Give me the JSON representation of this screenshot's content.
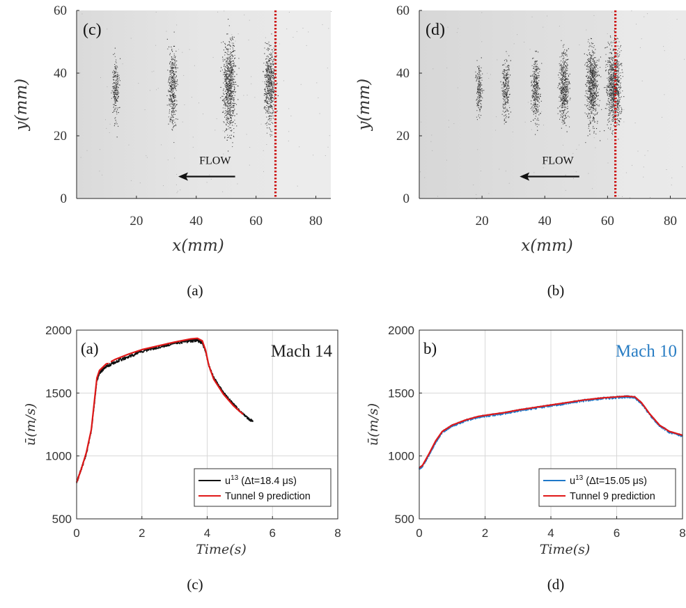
{
  "captions": {
    "top_left": "(a)",
    "top_right": "(b)",
    "bottom_left": "(c)",
    "bottom_right": "(d)"
  },
  "colors": {
    "marker_line": "#cc1111",
    "red_series": "#e01818",
    "black_series": "#111111",
    "blue_series": "#1f78c8",
    "mach10_title": "#2a7ec4",
    "frame": "#262626",
    "grid": "#d8d8d8"
  },
  "chart_data": [
    {
      "type": "scatter",
      "panel_label": "(c)",
      "xlabel": "x(mm)",
      "ylabel": "y(mm)",
      "xlim": [
        0,
        85
      ],
      "ylim": [
        0,
        60
      ],
      "xticks": [
        20,
        40,
        60,
        80
      ],
      "yticks": [
        0,
        20,
        40,
        60
      ],
      "grid": false,
      "background": "grayscale particle image",
      "annotation": "FLOW",
      "arrow": {
        "from_x": 53,
        "to_x": 34,
        "y": 7,
        "direction": "left"
      },
      "marker_line_x": 66.5,
      "clusters": [
        {
          "x": 13,
          "y_center": 35,
          "half_height": 9,
          "density": 0.25
        },
        {
          "x": 32,
          "y_center": 35,
          "half_height": 11,
          "density": 0.45
        },
        {
          "x": 51,
          "y_center": 36,
          "half_height": 13,
          "density": 0.85
        },
        {
          "x": 64.5,
          "y_center": 36,
          "half_height": 11,
          "density": 0.65
        }
      ]
    },
    {
      "type": "scatter",
      "panel_label": "(d)",
      "xlabel": "x(mm)",
      "ylabel": "y(mm)",
      "xlim": [
        0,
        85
      ],
      "ylim": [
        0,
        60
      ],
      "xticks": [
        20,
        40,
        60,
        80
      ],
      "yticks": [
        0,
        20,
        40,
        60
      ],
      "grid": false,
      "background": "grayscale particle image",
      "annotation": "FLOW",
      "arrow": {
        "from_x": 51,
        "to_x": 32,
        "y": 7,
        "direction": "left"
      },
      "marker_line_x": 62.5,
      "clusters": [
        {
          "x": 19,
          "y_center": 35,
          "half_height": 7,
          "density": 0.2
        },
        {
          "x": 27.5,
          "y_center": 35,
          "half_height": 8,
          "density": 0.28
        },
        {
          "x": 37,
          "y_center": 35,
          "half_height": 9,
          "density": 0.38
        },
        {
          "x": 46,
          "y_center": 35,
          "half_height": 10,
          "density": 0.55
        },
        {
          "x": 55,
          "y_center": 36,
          "half_height": 11,
          "density": 0.8
        },
        {
          "x": 62,
          "y_center": 36,
          "half_height": 11,
          "density": 1.0
        }
      ]
    },
    {
      "type": "line",
      "panel_label": "(a)",
      "title": "Mach 14",
      "xlabel": "Time(s)",
      "ylabel": "ū(m/s)",
      "xlim": [
        0,
        8
      ],
      "ylim": [
        500,
        2000
      ],
      "xticks": [
        0,
        2,
        4,
        6,
        8
      ],
      "yticks": [
        500,
        1000,
        1500,
        2000
      ],
      "grid": true,
      "legend_position": "bottom-right",
      "series": [
        {
          "name": "u",
          "name_sup": "13",
          "name_rest": " (Δt=18.4 μs)",
          "color": "#111111",
          "noise": 12,
          "x": [
            0,
            0.15,
            0.3,
            0.45,
            0.55,
            0.62,
            0.7,
            0.9,
            1.2,
            1.6,
            2.0,
            2.5,
            3.0,
            3.5,
            3.7,
            3.85,
            3.95,
            4.05,
            4.2,
            4.5,
            4.8,
            5.1,
            5.4
          ],
          "y": [
            790,
            900,
            1020,
            1200,
            1430,
            1600,
            1660,
            1710,
            1750,
            1790,
            1830,
            1865,
            1895,
            1915,
            1920,
            1900,
            1830,
            1720,
            1620,
            1500,
            1410,
            1330,
            1270
          ]
        },
        {
          "name": "Tunnel 9 prediction",
          "color": "#e01818",
          "noise": 0,
          "x": [
            0,
            0.15,
            0.3,
            0.45,
            0.55,
            0.62,
            0.7,
            0.9,
            1.2,
            1.6,
            2.0,
            2.5,
            3.0,
            3.5,
            3.7,
            3.85,
            3.95,
            4.05,
            4.2,
            4.5,
            4.8,
            5.1
          ],
          "y": [
            790,
            900,
            1030,
            1210,
            1450,
            1620,
            1680,
            1730,
            1770,
            1810,
            1845,
            1875,
            1905,
            1930,
            1935,
            1915,
            1840,
            1720,
            1610,
            1490,
            1400,
            1330
          ]
        }
      ]
    },
    {
      "type": "line",
      "panel_label": "b)",
      "title": "Mach 10",
      "xlabel": "Time(s)",
      "ylabel": "ū(m/s)",
      "xlim": [
        0,
        8
      ],
      "ylim": [
        500,
        2000
      ],
      "xticks": [
        0,
        2,
        4,
        6,
        8
      ],
      "yticks": [
        500,
        1000,
        1500,
        2000
      ],
      "grid": true,
      "legend_position": "bottom-right",
      "series": [
        {
          "name": "u",
          "name_sup": "13",
          "name_rest": " (Δt=15.05 μs)",
          "color": "#1f78c8",
          "noise": 10,
          "x": [
            0,
            0.1,
            0.3,
            0.5,
            0.7,
            1.0,
            1.4,
            1.8,
            2.2,
            2.6,
            3.0,
            3.5,
            4.0,
            4.5,
            5.0,
            5.5,
            6.0,
            6.3,
            6.55,
            6.75,
            7.0,
            7.3,
            7.6,
            8.0
          ],
          "y": [
            900,
            920,
            1010,
            1110,
            1190,
            1240,
            1280,
            1310,
            1325,
            1340,
            1360,
            1380,
            1400,
            1420,
            1440,
            1455,
            1465,
            1470,
            1465,
            1420,
            1330,
            1240,
            1190,
            1160
          ]
        },
        {
          "name": "Tunnel 9 prediction",
          "color": "#e01818",
          "noise": 0,
          "x": [
            0,
            0.1,
            0.3,
            0.5,
            0.7,
            1.0,
            1.4,
            1.8,
            2.2,
            2.6,
            3.0,
            3.5,
            4.0,
            4.5,
            5.0,
            5.5,
            6.0,
            6.3,
            6.55,
            6.75,
            7.0,
            7.3,
            7.6,
            8.0
          ],
          "y": [
            905,
            925,
            1020,
            1120,
            1195,
            1245,
            1285,
            1315,
            1330,
            1345,
            1365,
            1385,
            1405,
            1425,
            1445,
            1460,
            1470,
            1475,
            1470,
            1425,
            1335,
            1245,
            1195,
            1165
          ]
        }
      ]
    }
  ]
}
